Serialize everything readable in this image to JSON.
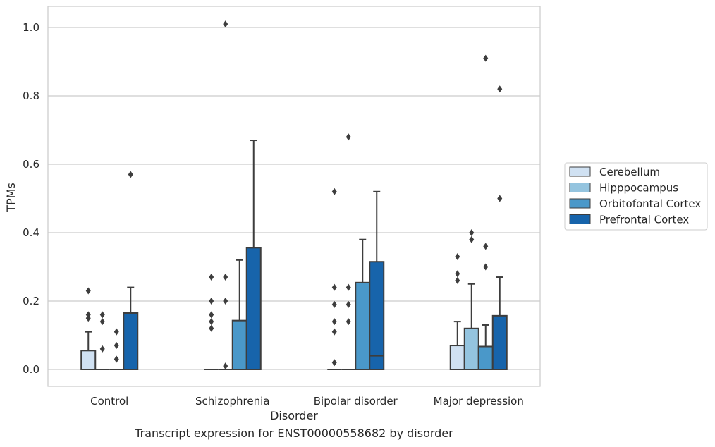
{
  "caption": "Transcript expression for ENST00000558682 by disorder",
  "chart_data": {
    "type": "box",
    "title": "",
    "xlabel": "Disorder",
    "ylabel": "TPMs",
    "ylim": [
      -0.05,
      1.06
    ],
    "yticks": [
      0.0,
      0.2,
      0.4,
      0.6,
      0.8,
      1.0
    ],
    "ytick_labels": [
      "0.0",
      "0.2",
      "0.4",
      "0.6",
      "0.8",
      "1.0"
    ],
    "grid": "horizontal",
    "legend_position": "center-right, outside plot",
    "categories": [
      "Control",
      "Schizophrenia",
      "Bipolar disorder",
      "Major depression"
    ],
    "series": [
      {
        "name": "Cerebellum",
        "color": "#d0e1f2",
        "boxes": [
          {
            "q1": 0.0,
            "median": 0.0,
            "q3": 0.055,
            "whisker_low": 0.0,
            "whisker_high": 0.11,
            "outliers": [
              0.15,
              0.16,
              0.23
            ]
          },
          {
            "q1": 0.0,
            "median": 0.0,
            "q3": 0.0,
            "whisker_low": 0.0,
            "whisker_high": 0.0,
            "outliers": [
              0.12,
              0.14,
              0.16,
              0.2,
              0.27
            ]
          },
          {
            "q1": 0.0,
            "median": 0.0,
            "q3": 0.0,
            "whisker_low": 0.0,
            "whisker_high": 0.0,
            "outliers": [
              0.02,
              0.11,
              0.14,
              0.19,
              0.24,
              0.52
            ]
          },
          {
            "q1": 0.0,
            "median": 0.0,
            "q3": 0.07,
            "whisker_low": 0.0,
            "whisker_high": 0.14,
            "outliers": [
              0.26,
              0.28,
              0.33
            ]
          }
        ]
      },
      {
        "name": "Hipppocampus",
        "color": "#94c4df",
        "boxes": [
          {
            "q1": 0.0,
            "median": 0.0,
            "q3": 0.0,
            "whisker_low": 0.0,
            "whisker_high": 0.0,
            "outliers": [
              0.06,
              0.14,
              0.16
            ]
          },
          {
            "q1": 0.0,
            "median": 0.0,
            "q3": 0.0,
            "whisker_low": 0.0,
            "whisker_high": 0.0,
            "outliers": [
              0.01,
              0.2,
              0.27,
              1.01
            ]
          },
          {
            "q1": 0.0,
            "median": 0.0,
            "q3": 0.0,
            "whisker_low": 0.0,
            "whisker_high": 0.0,
            "outliers": [
              0.14,
              0.19,
              0.24,
              0.68
            ]
          },
          {
            "q1": 0.0,
            "median": 0.0,
            "q3": 0.12,
            "whisker_low": 0.0,
            "whisker_high": 0.25,
            "outliers": [
              0.38,
              0.4
            ]
          }
        ]
      },
      {
        "name": "Orbitofontal Cortex",
        "color": "#4a98c9",
        "boxes": [
          {
            "q1": 0.0,
            "median": 0.0,
            "q3": 0.0,
            "whisker_low": 0.0,
            "whisker_high": 0.0,
            "outliers": [
              0.03,
              0.07,
              0.11
            ]
          },
          {
            "q1": 0.0,
            "median": 0.0,
            "q3": 0.143,
            "whisker_low": 0.0,
            "whisker_high": 0.32,
            "outliers": []
          },
          {
            "q1": 0.0,
            "median": 0.0,
            "q3": 0.254,
            "whisker_low": 0.0,
            "whisker_high": 0.38,
            "outliers": []
          },
          {
            "q1": 0.0,
            "median": 0.0,
            "q3": 0.067,
            "whisker_low": 0.0,
            "whisker_high": 0.13,
            "outliers": [
              0.3,
              0.36,
              0.91
            ]
          }
        ]
      },
      {
        "name": "Prefrontal Cortex",
        "color": "#1764ab",
        "boxes": [
          {
            "q1": 0.0,
            "median": 0.0,
            "q3": 0.165,
            "whisker_low": 0.0,
            "whisker_high": 0.24,
            "outliers": [
              0.57
            ]
          },
          {
            "q1": 0.0,
            "median": 0.0,
            "q3": 0.356,
            "whisker_low": 0.0,
            "whisker_high": 0.67,
            "outliers": []
          },
          {
            "q1": 0.0,
            "median": 0.04,
            "q3": 0.315,
            "whisker_low": 0.0,
            "whisker_high": 0.52,
            "outliers": []
          },
          {
            "q1": 0.0,
            "median": 0.0,
            "q3": 0.157,
            "whisker_low": 0.0,
            "whisker_high": 0.27,
            "outliers": [
              0.5,
              0.82
            ]
          }
        ]
      }
    ]
  }
}
